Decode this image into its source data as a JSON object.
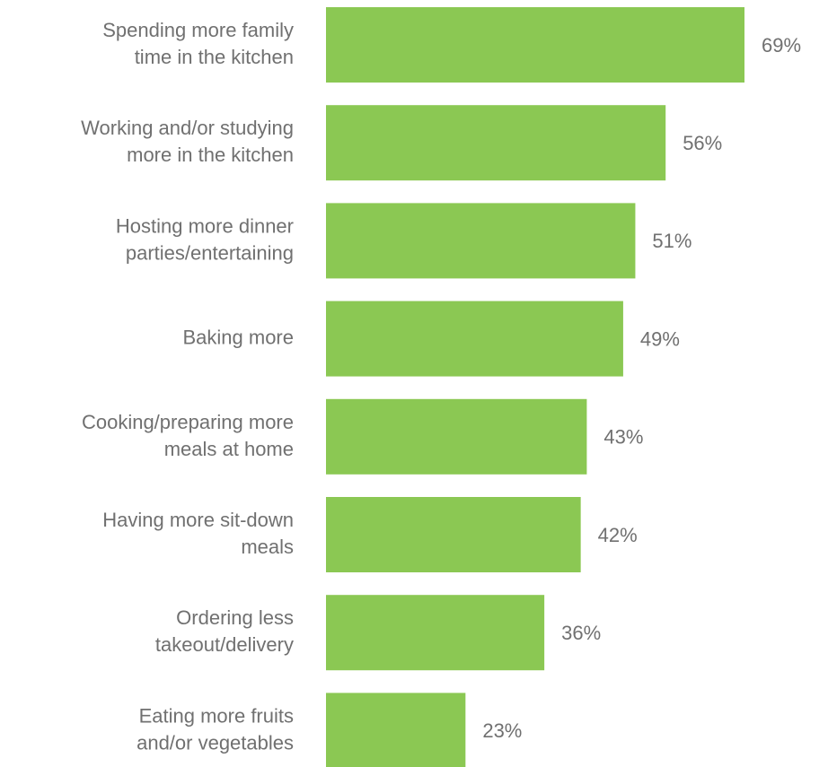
{
  "chart_data": {
    "type": "bar",
    "orientation": "horizontal",
    "categories": [
      "Spending more family\ntime in the kitchen",
      "Working and/or studying\nmore in the kitchen",
      "Hosting more dinner\nparties/entertaining",
      "Baking more",
      "Cooking/preparing more\nmeals at home",
      "Having more sit-down\nmeals",
      "Ordering less\ntakeout/delivery",
      "Eating more fruits\nand/or vegetables"
    ],
    "values": [
      69,
      56,
      51,
      49,
      43,
      42,
      36,
      23
    ],
    "value_labels": [
      "69%",
      "56%",
      "51%",
      "49%",
      "43%",
      "42%",
      "36%",
      "23%"
    ],
    "color": "#8bc853"
  }
}
